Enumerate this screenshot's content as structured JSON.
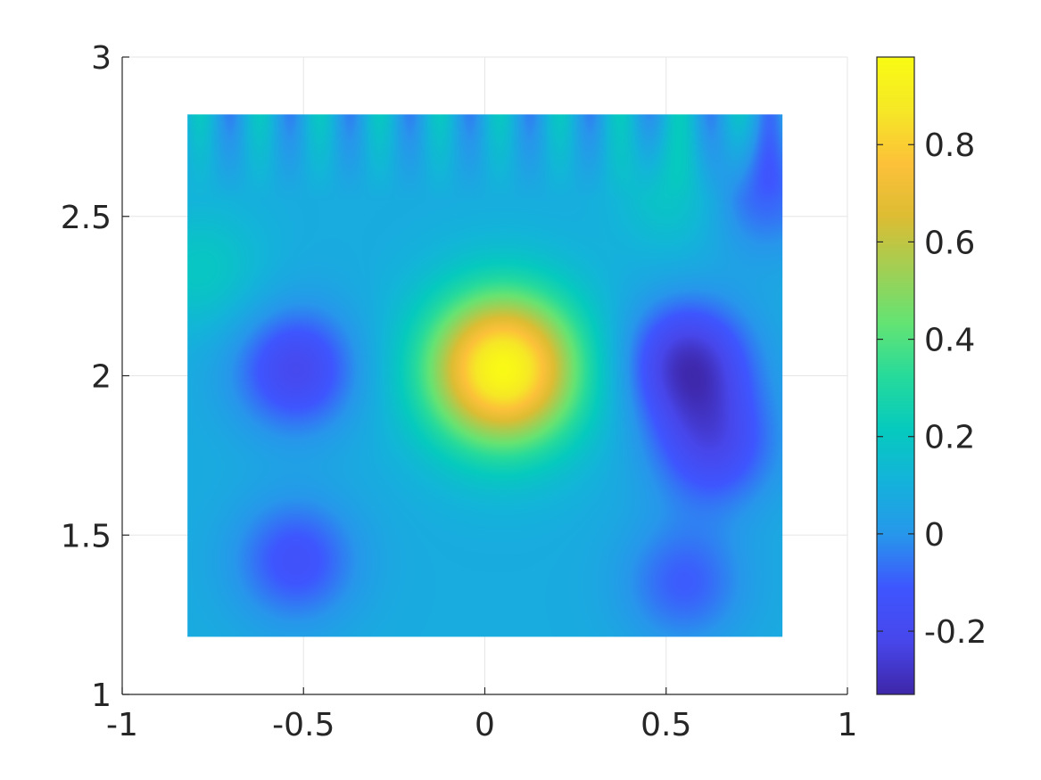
{
  "chart_data": {
    "type": "heatmap",
    "title": "",
    "xlabel": "",
    "ylabel": "",
    "xlim": [
      -1,
      1
    ],
    "ylim": [
      1,
      3
    ],
    "x_ticks": [
      "-1",
      "-0.5",
      "0",
      "0.5",
      "1"
    ],
    "x_tick_values": [
      -1,
      -0.5,
      0,
      0.5,
      1
    ],
    "y_ticks": [
      "1",
      "1.5",
      "2",
      "2.5",
      "3"
    ],
    "y_tick_values": [
      1,
      1.5,
      2,
      2.5,
      3
    ],
    "grid": true,
    "data_extent": {
      "x": [
        -0.82,
        0.82
      ],
      "y": [
        1.18,
        2.82
      ]
    },
    "colormap": "parula",
    "colorbar": {
      "range": [
        -0.33,
        0.98
      ],
      "ticks": [
        "-0.2",
        "0",
        "0.2",
        "0.4",
        "0.6",
        "0.8"
      ],
      "tick_values": [
        -0.2,
        0,
        0.2,
        0.4,
        0.6,
        0.8
      ]
    },
    "features": [
      {
        "x": 0.05,
        "y": 2.02,
        "value": 0.97
      },
      {
        "x": -0.52,
        "y": 2.02,
        "value": -0.2
      },
      {
        "x": 0.56,
        "y": 2.04,
        "value": -0.28
      },
      {
        "x": 0.63,
        "y": 1.78,
        "value": -0.18
      },
      {
        "x": -0.52,
        "y": 1.42,
        "value": -0.14
      },
      {
        "x": 0.55,
        "y": 1.35,
        "value": -0.1
      },
      {
        "x": 0.75,
        "y": 2.58,
        "value": -0.12
      },
      {
        "x": 0.55,
        "y": 2.58,
        "value": 0.22
      },
      {
        "x": -0.78,
        "y": 2.33,
        "value": 0.2
      }
    ],
    "background_value": 0.08
  },
  "colors": {
    "axis": "#262626",
    "grid": "#e6e6e6",
    "background": "#ffffff"
  }
}
